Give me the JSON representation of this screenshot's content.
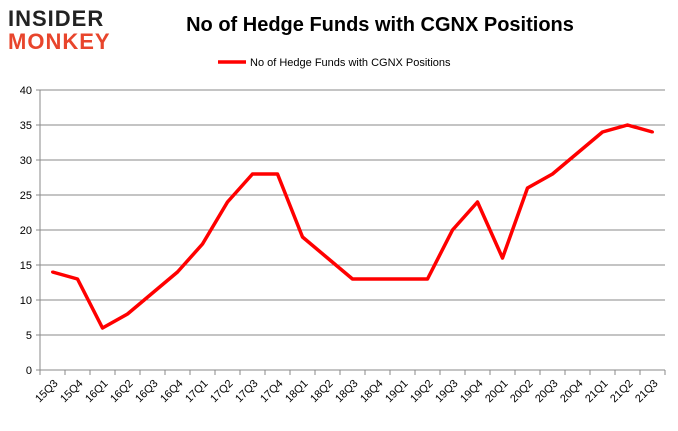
{
  "logo": {
    "text_top": "INSIDER",
    "text_bottom": "MONKEY"
  },
  "chart_data": {
    "type": "line",
    "title": "No of Hedge Funds with CGNX Positions",
    "categories": [
      "15Q3",
      "15Q4",
      "16Q1",
      "16Q2",
      "16Q3",
      "16Q4",
      "17Q1",
      "17Q2",
      "17Q3",
      "17Q4",
      "18Q1",
      "18Q2",
      "18Q3",
      "18Q4",
      "19Q1",
      "19Q2",
      "19Q3",
      "19Q4",
      "20Q1",
      "20Q2",
      "20Q3",
      "20Q4",
      "21Q1",
      "21Q2",
      "21Q3"
    ],
    "series": [
      {
        "name": "No of Hedge Funds with CGNX Positions",
        "color": "#ff0000",
        "values": [
          14,
          13,
          6,
          8,
          11,
          14,
          18,
          24,
          28,
          28,
          19,
          16,
          13,
          13,
          13,
          13,
          20,
          24,
          16,
          26,
          28,
          31,
          34,
          35,
          34
        ]
      }
    ],
    "ylim": [
      0,
      40
    ],
    "yticks": [
      0,
      5,
      10,
      15,
      20,
      25,
      30,
      35,
      40
    ],
    "grid": true,
    "legend": "top-center",
    "xlabel": "",
    "ylabel": ""
  }
}
